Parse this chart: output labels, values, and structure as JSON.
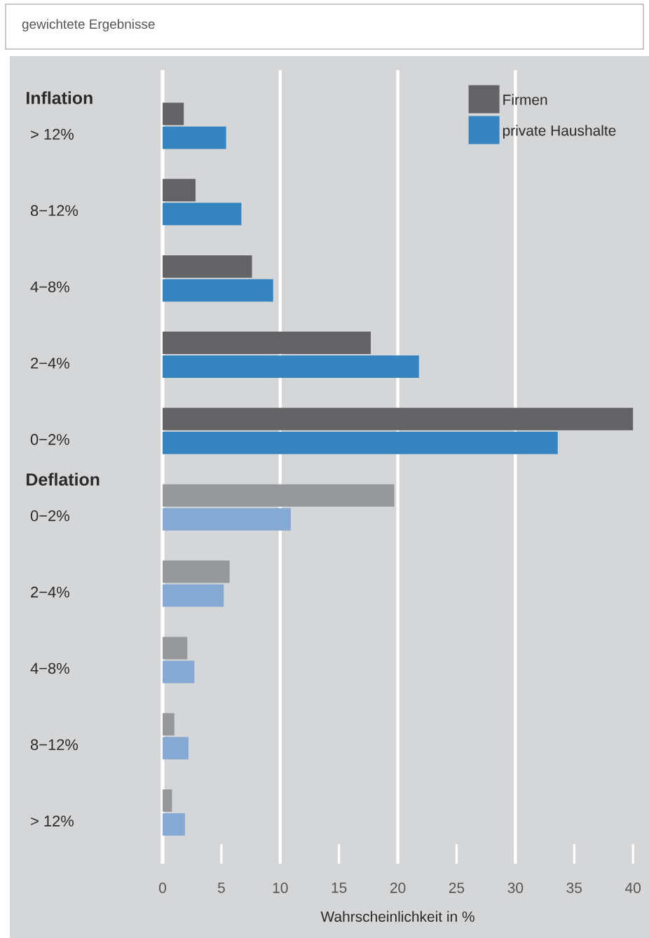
{
  "chart_data": {
    "type": "bar",
    "orientation": "horizontal",
    "title": "gewichtete Ergebnisse",
    "categories": [
      "> 12%",
      "8−12%",
      "4−8%",
      "2−4%",
      "0−2%",
      "0−2%",
      "2−4%",
      "4−8%",
      "8−12%",
      "> 12%"
    ],
    "series": [
      {
        "name": "Firmen",
        "color": "#636366",
        "colors": [
          "#636366",
          "#636366",
          "#636366",
          "#636366",
          "#636366",
          "#97989b",
          "#97989b",
          "#97989b",
          "#97989b",
          "#97989b"
        ],
        "values": [
          1.8,
          2.8,
          7.6,
          17.7,
          40,
          19.7,
          5.7,
          2.1,
          1.0,
          0.8
        ]
      },
      {
        "name": "private Haushalte",
        "color": "#3584bf",
        "colors": [
          "#3584bf",
          "#3584bf",
          "#3584bf",
          "#3584bf",
          "#3584bf",
          "#86a9d3",
          "#86a9d3",
          "#86a9d3",
          "#86a9d3",
          "#86a9d3"
        ],
        "values": [
          5.4,
          6.7,
          9.4,
          21.8,
          33.6,
          10.9,
          5.2,
          2.7,
          2.2,
          1.9
        ]
      }
    ],
    "annotations": [
      "Inflation",
      "Deflation"
    ],
    "xlabel": "Wahrscheinlichkeit in %",
    "xlim": [
      0,
      40
    ],
    "xticks": [
      0,
      5,
      10,
      15,
      20,
      25,
      30,
      35,
      40
    ],
    "grid": "x",
    "legend": "top right"
  }
}
